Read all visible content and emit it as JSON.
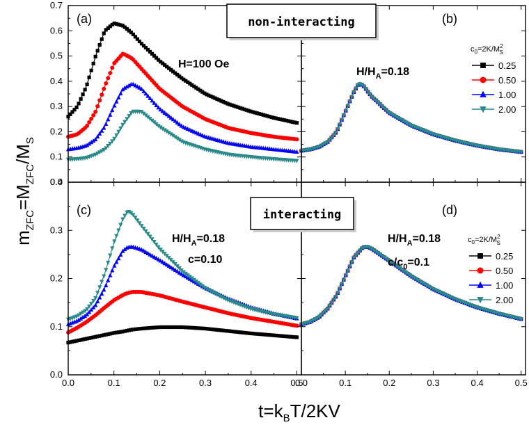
{
  "figure": {
    "ylabel": {
      "main": "m",
      "main_sub": "ZFC",
      "eq": "=M",
      "eq_sub": "ZFC",
      "slash": "/M",
      "slash_sub": "S"
    },
    "xlabel": {
      "main": "t=k",
      "main_sub": "B",
      "rest": "T/2KV"
    },
    "box_top": "non-interacting",
    "box_bottom": "interacting"
  },
  "legend": {
    "header": {
      "p1": "c",
      "p1_sub": "0",
      "p2": "=2K/M",
      "p2_sup": "2",
      "p2_sub": "S"
    },
    "entries": [
      "0.25",
      "0.50",
      "1.00",
      "2.00"
    ]
  },
  "colors": {
    "black": "#000000",
    "red": "#ff0000",
    "blue": "#0000ff",
    "teal": "#2a8a8a"
  },
  "markers": {
    "0.25": "square",
    "0.50": "circle",
    "1.00": "triangle-up",
    "2.00": "triangle-down"
  },
  "chart_data": [
    {
      "panel": "a",
      "label": "(a)",
      "type": "line",
      "annotation": {
        "text": "H=100 Oe"
      },
      "xlim": [
        0.0,
        0.5
      ],
      "ylim": [
        0.0,
        0.7
      ],
      "xticks": [
        "0.0",
        "0.1",
        "0.2",
        "0.3",
        "0.4",
        "0.5"
      ],
      "yticks": [
        "0.0",
        "0.1",
        "0.2",
        "0.3",
        "0.4",
        "0.5",
        "0.6",
        "0.7"
      ],
      "x": [
        0.0,
        0.02,
        0.04,
        0.06,
        0.08,
        0.1,
        0.12,
        0.14,
        0.16,
        0.2,
        0.25,
        0.3,
        0.35,
        0.4,
        0.45,
        0.5
      ],
      "series": [
        {
          "name": "0.25",
          "values": [
            0.26,
            0.3,
            0.38,
            0.5,
            0.6,
            0.63,
            0.62,
            0.59,
            0.55,
            0.48,
            0.41,
            0.35,
            0.31,
            0.28,
            0.255,
            0.235
          ]
        },
        {
          "name": "0.50",
          "values": [
            0.18,
            0.19,
            0.22,
            0.28,
            0.38,
            0.47,
            0.51,
            0.49,
            0.45,
            0.37,
            0.3,
            0.25,
            0.215,
            0.195,
            0.18,
            0.17
          ]
        },
        {
          "name": "1.00",
          "values": [
            0.13,
            0.135,
            0.145,
            0.17,
            0.22,
            0.3,
            0.37,
            0.39,
            0.37,
            0.29,
            0.22,
            0.18,
            0.155,
            0.14,
            0.13,
            0.12
          ]
        },
        {
          "name": "2.00",
          "values": [
            0.09,
            0.092,
            0.097,
            0.11,
            0.13,
            0.17,
            0.23,
            0.28,
            0.28,
            0.22,
            0.16,
            0.13,
            0.11,
            0.1,
            0.092,
            0.085
          ]
        }
      ]
    },
    {
      "panel": "b",
      "label": "(b)",
      "type": "line",
      "annotation": {
        "main": "H/H",
        "sub": "A",
        "rest": "=0.18"
      },
      "xlim": [
        0.0,
        0.5
      ],
      "ylim": [
        0.0,
        0.7
      ],
      "x": [
        0.0,
        0.02,
        0.04,
        0.06,
        0.08,
        0.1,
        0.12,
        0.13,
        0.14,
        0.16,
        0.2,
        0.25,
        0.3,
        0.35,
        0.4,
        0.45,
        0.5
      ],
      "series": [
        {
          "name": "0.25",
          "values": [
            0.125,
            0.13,
            0.14,
            0.16,
            0.2,
            0.28,
            0.36,
            0.39,
            0.385,
            0.34,
            0.275,
            0.225,
            0.19,
            0.165,
            0.145,
            0.13,
            0.12
          ]
        },
        {
          "name": "0.50",
          "values": [
            0.125,
            0.13,
            0.14,
            0.16,
            0.2,
            0.28,
            0.36,
            0.39,
            0.385,
            0.34,
            0.275,
            0.225,
            0.19,
            0.165,
            0.145,
            0.13,
            0.12
          ]
        },
        {
          "name": "1.00",
          "values": [
            0.125,
            0.13,
            0.14,
            0.16,
            0.2,
            0.28,
            0.36,
            0.39,
            0.385,
            0.34,
            0.275,
            0.225,
            0.19,
            0.165,
            0.145,
            0.13,
            0.12
          ]
        },
        {
          "name": "2.00",
          "values": [
            0.125,
            0.13,
            0.14,
            0.16,
            0.2,
            0.28,
            0.36,
            0.39,
            0.385,
            0.34,
            0.275,
            0.225,
            0.19,
            0.165,
            0.145,
            0.13,
            0.12
          ]
        }
      ]
    },
    {
      "panel": "c",
      "label": "(c)",
      "type": "line",
      "annotation": {
        "main": "H/H",
        "sub": "A",
        "rest": "=0.18",
        "line2": "c=0.10"
      },
      "xlim": [
        0.0,
        0.5
      ],
      "ylim": [
        0.0,
        0.4
      ],
      "xticks": [
        "0.0",
        "0.1",
        "0.2",
        "0.3",
        "0.4",
        "0.5"
      ],
      "yticks": [
        "0.0",
        "0.1",
        "0.2",
        "0.3",
        "0.4"
      ],
      "x": [
        0.0,
        0.02,
        0.04,
        0.06,
        0.08,
        0.1,
        0.12,
        0.13,
        0.14,
        0.16,
        0.2,
        0.25,
        0.3,
        0.35,
        0.4,
        0.45,
        0.5
      ],
      "series": [
        {
          "name": "0.25",
          "values": [
            0.067,
            0.071,
            0.075,
            0.079,
            0.083,
            0.087,
            0.09,
            0.092,
            0.094,
            0.096,
            0.099,
            0.099,
            0.096,
            0.091,
            0.086,
            0.082,
            0.078
          ]
        },
        {
          "name": "0.50",
          "values": [
            0.088,
            0.098,
            0.11,
            0.124,
            0.14,
            0.155,
            0.166,
            0.17,
            0.172,
            0.172,
            0.165,
            0.152,
            0.14,
            0.128,
            0.118,
            0.11,
            0.102
          ]
        },
        {
          "name": "1.00",
          "values": [
            0.105,
            0.112,
            0.124,
            0.145,
            0.18,
            0.225,
            0.258,
            0.265,
            0.266,
            0.26,
            0.238,
            0.208,
            0.18,
            0.158,
            0.14,
            0.127,
            0.117
          ]
        },
        {
          "name": "2.00",
          "values": [
            0.115,
            0.122,
            0.135,
            0.16,
            0.21,
            0.275,
            0.325,
            0.34,
            0.335,
            0.31,
            0.262,
            0.215,
            0.18,
            0.155,
            0.137,
            0.126,
            0.118
          ]
        }
      ]
    },
    {
      "panel": "d",
      "label": "(d)",
      "type": "line",
      "annotation": {
        "main": "H/H",
        "sub": "A",
        "rest": "=0.18",
        "line2": "c/c",
        "line2_sub": "0",
        "line2_rest": "=0.1"
      },
      "xlim": [
        0.0,
        0.5
      ],
      "ylim": [
        0.0,
        0.4
      ],
      "x": [
        0.0,
        0.02,
        0.04,
        0.06,
        0.08,
        0.1,
        0.12,
        0.14,
        0.15,
        0.16,
        0.2,
        0.25,
        0.3,
        0.35,
        0.4,
        0.45,
        0.5
      ],
      "series": [
        {
          "name": "0.25",
          "values": [
            0.105,
            0.11,
            0.12,
            0.138,
            0.165,
            0.205,
            0.245,
            0.265,
            0.266,
            0.262,
            0.237,
            0.205,
            0.178,
            0.157,
            0.14,
            0.127,
            0.116
          ]
        },
        {
          "name": "0.50",
          "values": [
            0.105,
            0.11,
            0.12,
            0.138,
            0.165,
            0.205,
            0.245,
            0.265,
            0.266,
            0.262,
            0.237,
            0.205,
            0.178,
            0.157,
            0.14,
            0.127,
            0.116
          ]
        },
        {
          "name": "1.00",
          "values": [
            0.105,
            0.11,
            0.12,
            0.138,
            0.165,
            0.205,
            0.245,
            0.265,
            0.266,
            0.262,
            0.237,
            0.205,
            0.178,
            0.157,
            0.14,
            0.127,
            0.116
          ]
        },
        {
          "name": "2.00",
          "values": [
            0.105,
            0.11,
            0.12,
            0.138,
            0.165,
            0.205,
            0.245,
            0.265,
            0.266,
            0.262,
            0.237,
            0.205,
            0.178,
            0.157,
            0.14,
            0.127,
            0.116
          ]
        }
      ]
    }
  ]
}
